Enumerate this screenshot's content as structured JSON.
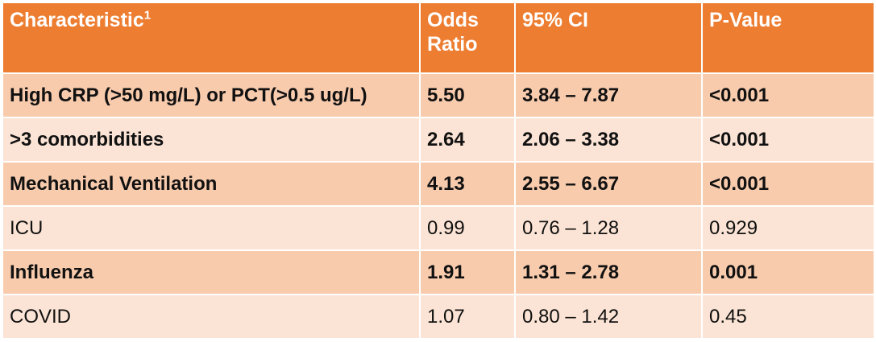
{
  "table": {
    "headers": {
      "characteristic": "Characteristic",
      "characteristic_sup": "1",
      "odds_ratio": "Odds Ratio",
      "ci": "95% CI",
      "p_value": "P-Value"
    },
    "rows": [
      {
        "characteristic": "High CRP (>50 mg/L) or PCT(>0.5 ug/L)",
        "odds_ratio": "5.50",
        "ci": "3.84 – 7.87",
        "p_value": "<0.001",
        "bold": true
      },
      {
        "characteristic": ">3 comorbidities",
        "odds_ratio": "2.64",
        "ci": "2.06 – 3.38",
        "p_value": "<0.001",
        "bold": true
      },
      {
        "characteristic": "Mechanical Ventilation",
        "odds_ratio": "4.13",
        "ci": "2.55 – 6.67",
        "p_value": "<0.001",
        "bold": true
      },
      {
        "characteristic": "ICU",
        "odds_ratio": "0.99",
        "ci": "0.76 – 1.28",
        "p_value": "0.929",
        "bold": false
      },
      {
        "characteristic": "Influenza",
        "odds_ratio": "1.91",
        "ci": "1.31 – 2.78",
        "p_value": "0.001",
        "bold": true
      },
      {
        "characteristic": "COVID",
        "odds_ratio": "1.07",
        "ci": "0.80 – 1.42",
        "p_value": "0.45",
        "bold": false
      }
    ]
  },
  "colors": {
    "header_bg": "#ed7d31",
    "row_dark": "#f8cbad",
    "row_light": "#fbe4d5"
  }
}
